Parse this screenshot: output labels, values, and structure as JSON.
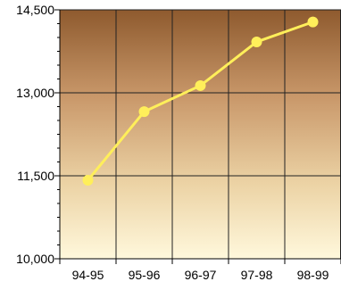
{
  "chart_data": {
    "type": "line",
    "title": "",
    "xlabel": "",
    "ylabel": "",
    "categories": [
      "94-95",
      "95-96",
      "96-97",
      "97-98",
      "98-99"
    ],
    "series": [
      {
        "values": [
          11420,
          12660,
          13130,
          13920,
          14280
        ]
      }
    ],
    "ylim": [
      10000,
      14500
    ],
    "y_ticks": [
      10000,
      11500,
      13000,
      14500
    ],
    "y_tick_labels": [
      "10,000",
      "11,500",
      "13,000",
      "14,500"
    ],
    "grid": true,
    "legend": "none",
    "colors": {
      "line": "#ffef5a",
      "marker": "#ffef5a",
      "plot_top": "#8e5a2e",
      "plot_bottom": "#fff8dc",
      "grid": "#222222",
      "axis": "#000000"
    }
  }
}
